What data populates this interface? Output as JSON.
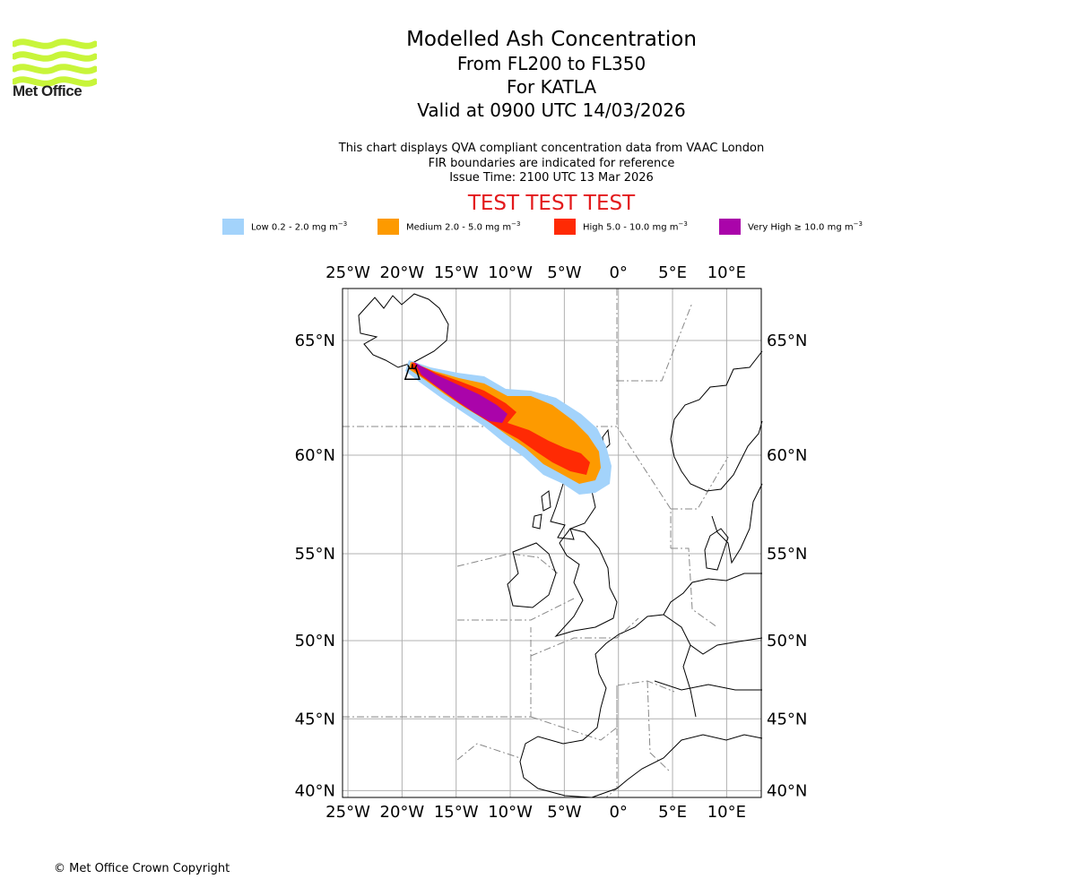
{
  "header": {
    "title": "Modelled Ash Concentration",
    "levels": "From FL200 to FL350",
    "volcano": "For KATLA",
    "valid": "Valid at 0900 UTC 14/03/2026",
    "line1": "This chart displays QVA compliant concentration data from VAAC London",
    "line2": "FIR boundaries are indicated for reference",
    "issue": "Issue Time: 2100 UTC 13 Mar 2026",
    "test_banner": "TEST TEST TEST"
  },
  "logo": {
    "text": "Met Office",
    "color": "#c8f53a"
  },
  "legend": [
    {
      "label": "Low 0.2 - 2.0 mg m",
      "color": "#a3d3fb"
    },
    {
      "label": "Medium 2.0 - 5.0 mg m",
      "color": "#fd9a00"
    },
    {
      "label": "High 5.0 - 10.0 mg m",
      "color": "#ff2a04"
    },
    {
      "label": "Very High  ≥  10.0 mg m",
      "color": "#aa04aa"
    }
  ],
  "legend_unit_exp": "−3",
  "map": {
    "extent": {
      "lon": [
        -25.5,
        13.2
      ],
      "lat": [
        39.5,
        67
      ]
    },
    "lon_ticks": [
      {
        "lon": -25,
        "label": "25°W"
      },
      {
        "lon": -20,
        "label": "20°W"
      },
      {
        "lon": -15,
        "label": "15°W"
      },
      {
        "lon": -10,
        "label": "10°W"
      },
      {
        "lon": -5,
        "label": "5°W"
      },
      {
        "lon": 0,
        "label": "0°"
      },
      {
        "lon": 5,
        "label": "5°E"
      },
      {
        "lon": 10,
        "label": "10°E"
      }
    ],
    "lat_ticks": [
      {
        "lat": 65,
        "label": "65°N"
      },
      {
        "lat": 60,
        "label": "60°N"
      },
      {
        "lat": 55,
        "label": "55°N"
      },
      {
        "lat": 50,
        "label": "50°N"
      },
      {
        "lat": 45,
        "label": "45°N"
      },
      {
        "lat": 40,
        "label": "40°N"
      }
    ],
    "volcano_location": {
      "lon": -19.05,
      "lat": 63.63
    }
  },
  "copyright": "© Met Office Crown Copyright"
}
